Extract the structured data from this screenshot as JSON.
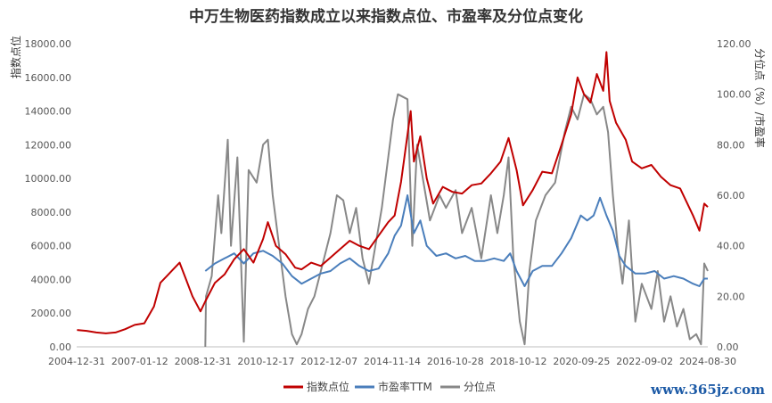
{
  "chart_data": {
    "type": "line",
    "title": "中万生物医药指数成立以来指数点位、市盈率及分位点变化",
    "ylabel_left": "指数点位",
    "ylabel_right": "分位点（%）/市盈率",
    "ylim_left": [
      0,
      18000
    ],
    "ylim_right": [
      0,
      120
    ],
    "yticks_left": [
      "0.00",
      "2000.00",
      "4000.00",
      "6000.00",
      "8000.00",
      "10000.00",
      "12000.00",
      "14000.00",
      "16000.00",
      "18000.00"
    ],
    "yticks_right": [
      "0.00",
      "20.00",
      "40.00",
      "60.00",
      "80.00",
      "100.00",
      "120.00"
    ],
    "x_range": [
      2004.99,
      2024.66
    ],
    "xticks": [
      "2004-12-31",
      "2007-01-12",
      "2008-12-31",
      "2010-12-17",
      "2012-12-07",
      "2014-11-14",
      "2016-10-28",
      "2018-10-12",
      "2020-09-25",
      "2022-09-02",
      "2024-08-30"
    ],
    "grid": false,
    "legend_position": "bottom",
    "series": [
      {
        "name": "指数点位",
        "axis": "left",
        "color": "#c00000",
        "points": [
          [
            2005.0,
            1000
          ],
          [
            2005.3,
            950
          ],
          [
            2005.6,
            850
          ],
          [
            2005.9,
            800
          ],
          [
            2006.2,
            850
          ],
          [
            2006.5,
            1050
          ],
          [
            2006.8,
            1300
          ],
          [
            2007.1,
            1400
          ],
          [
            2007.4,
            2400
          ],
          [
            2007.6,
            3800
          ],
          [
            2007.8,
            4200
          ],
          [
            2008.0,
            4600
          ],
          [
            2008.2,
            5000
          ],
          [
            2008.4,
            4000
          ],
          [
            2008.6,
            3000
          ],
          [
            2008.85,
            2100
          ],
          [
            2009.0,
            2700
          ],
          [
            2009.3,
            3800
          ],
          [
            2009.6,
            4300
          ],
          [
            2009.9,
            5200
          ],
          [
            2010.2,
            5800
          ],
          [
            2010.5,
            5000
          ],
          [
            2010.8,
            6400
          ],
          [
            2010.95,
            7400
          ],
          [
            2011.2,
            6000
          ],
          [
            2011.5,
            5500
          ],
          [
            2011.8,
            4700
          ],
          [
            2012.0,
            4600
          ],
          [
            2012.3,
            5000
          ],
          [
            2012.6,
            4800
          ],
          [
            2012.9,
            5300
          ],
          [
            2013.2,
            5800
          ],
          [
            2013.5,
            6300
          ],
          [
            2013.8,
            6000
          ],
          [
            2014.1,
            5800
          ],
          [
            2014.4,
            6600
          ],
          [
            2014.7,
            7400
          ],
          [
            2014.9,
            7800
          ],
          [
            2015.1,
            9800
          ],
          [
            2015.4,
            14000
          ],
          [
            2015.5,
            11000
          ],
          [
            2015.7,
            12500
          ],
          [
            2015.9,
            10000
          ],
          [
            2016.1,
            8500
          ],
          [
            2016.4,
            9500
          ],
          [
            2016.7,
            9200
          ],
          [
            2017.0,
            9100
          ],
          [
            2017.3,
            9600
          ],
          [
            2017.6,
            9700
          ],
          [
            2017.9,
            10300
          ],
          [
            2018.2,
            11000
          ],
          [
            2018.45,
            12400
          ],
          [
            2018.7,
            10500
          ],
          [
            2018.9,
            8400
          ],
          [
            2019.2,
            9300
          ],
          [
            2019.5,
            10400
          ],
          [
            2019.8,
            10300
          ],
          [
            2020.1,
            12000
          ],
          [
            2020.4,
            13800
          ],
          [
            2020.6,
            16000
          ],
          [
            2020.8,
            15000
          ],
          [
            2021.0,
            14500
          ],
          [
            2021.2,
            16200
          ],
          [
            2021.4,
            15200
          ],
          [
            2021.5,
            17500
          ],
          [
            2021.6,
            14600
          ],
          [
            2021.8,
            13300
          ],
          [
            2022.1,
            12300
          ],
          [
            2022.3,
            11000
          ],
          [
            2022.6,
            10600
          ],
          [
            2022.9,
            10800
          ],
          [
            2023.2,
            10100
          ],
          [
            2023.5,
            9600
          ],
          [
            2023.8,
            9400
          ],
          [
            2024.0,
            8600
          ],
          [
            2024.2,
            7800
          ],
          [
            2024.4,
            6900
          ],
          [
            2024.55,
            8500
          ],
          [
            2024.66,
            8300
          ]
        ]
      },
      {
        "name": "市盈率TTM",
        "axis": "right",
        "color": "#4a7ebb",
        "points": [
          [
            2009.0,
            30
          ],
          [
            2009.3,
            33
          ],
          [
            2009.6,
            35
          ],
          [
            2009.9,
            37
          ],
          [
            2010.2,
            33
          ],
          [
            2010.5,
            37
          ],
          [
            2010.8,
            38
          ],
          [
            2011.1,
            36
          ],
          [
            2011.4,
            33
          ],
          [
            2011.7,
            28
          ],
          [
            2012.0,
            25
          ],
          [
            2012.3,
            27
          ],
          [
            2012.6,
            29
          ],
          [
            2012.9,
            30
          ],
          [
            2013.2,
            33
          ],
          [
            2013.5,
            35
          ],
          [
            2013.8,
            32
          ],
          [
            2014.1,
            30
          ],
          [
            2014.4,
            31
          ],
          [
            2014.7,
            37
          ],
          [
            2014.9,
            44
          ],
          [
            2015.1,
            48
          ],
          [
            2015.3,
            60
          ],
          [
            2015.5,
            45
          ],
          [
            2015.7,
            50
          ],
          [
            2015.9,
            40
          ],
          [
            2016.2,
            36
          ],
          [
            2016.5,
            37
          ],
          [
            2016.8,
            35
          ],
          [
            2017.1,
            36
          ],
          [
            2017.4,
            34
          ],
          [
            2017.7,
            34
          ],
          [
            2018.0,
            35
          ],
          [
            2018.3,
            34
          ],
          [
            2018.5,
            37
          ],
          [
            2018.7,
            30
          ],
          [
            2018.95,
            24
          ],
          [
            2019.2,
            30
          ],
          [
            2019.5,
            32
          ],
          [
            2019.8,
            32
          ],
          [
            2020.1,
            37
          ],
          [
            2020.4,
            43
          ],
          [
            2020.7,
            52
          ],
          [
            2020.9,
            50
          ],
          [
            2021.1,
            52
          ],
          [
            2021.3,
            59
          ],
          [
            2021.5,
            52
          ],
          [
            2021.7,
            46
          ],
          [
            2021.9,
            36
          ],
          [
            2022.1,
            32
          ],
          [
            2022.4,
            29
          ],
          [
            2022.7,
            29
          ],
          [
            2023.0,
            30
          ],
          [
            2023.3,
            27
          ],
          [
            2023.6,
            28
          ],
          [
            2023.9,
            27
          ],
          [
            2024.2,
            25
          ],
          [
            2024.4,
            24
          ],
          [
            2024.55,
            27
          ],
          [
            2024.66,
            27
          ]
        ]
      },
      {
        "name": "分位点",
        "axis": "right",
        "color": "#888888",
        "points": [
          [
            2009.0,
            0
          ],
          [
            2009.02,
            20
          ],
          [
            2009.2,
            28
          ],
          [
            2009.4,
            60
          ],
          [
            2009.5,
            45
          ],
          [
            2009.7,
            82
          ],
          [
            2009.8,
            40
          ],
          [
            2010.0,
            75
          ],
          [
            2010.2,
            2
          ],
          [
            2010.35,
            70
          ],
          [
            2010.6,
            65
          ],
          [
            2010.8,
            80
          ],
          [
            2010.95,
            82
          ],
          [
            2011.1,
            60
          ],
          [
            2011.3,
            40
          ],
          [
            2011.5,
            20
          ],
          [
            2011.7,
            5
          ],
          [
            2011.85,
            1
          ],
          [
            2012.0,
            5
          ],
          [
            2012.2,
            15
          ],
          [
            2012.4,
            20
          ],
          [
            2012.6,
            30
          ],
          [
            2012.9,
            45
          ],
          [
            2013.1,
            60
          ],
          [
            2013.3,
            58
          ],
          [
            2013.5,
            45
          ],
          [
            2013.7,
            55
          ],
          [
            2013.9,
            35
          ],
          [
            2014.1,
            25
          ],
          [
            2014.3,
            40
          ],
          [
            2014.5,
            55
          ],
          [
            2014.7,
            75
          ],
          [
            2014.85,
            90
          ],
          [
            2015.0,
            100
          ],
          [
            2015.3,
            98
          ],
          [
            2015.45,
            40
          ],
          [
            2015.6,
            80
          ],
          [
            2015.8,
            65
          ],
          [
            2016.0,
            50
          ],
          [
            2016.3,
            60
          ],
          [
            2016.5,
            55
          ],
          [
            2016.8,
            62
          ],
          [
            2017.0,
            45
          ],
          [
            2017.3,
            55
          ],
          [
            2017.6,
            35
          ],
          [
            2017.9,
            60
          ],
          [
            2018.1,
            45
          ],
          [
            2018.3,
            60
          ],
          [
            2018.45,
            75
          ],
          [
            2018.6,
            35
          ],
          [
            2018.8,
            10
          ],
          [
            2018.95,
            1
          ],
          [
            2019.1,
            30
          ],
          [
            2019.3,
            50
          ],
          [
            2019.6,
            60
          ],
          [
            2019.9,
            65
          ],
          [
            2020.2,
            85
          ],
          [
            2020.4,
            95
          ],
          [
            2020.6,
            90
          ],
          [
            2020.8,
            100
          ],
          [
            2021.0,
            98
          ],
          [
            2021.2,
            92
          ],
          [
            2021.4,
            95
          ],
          [
            2021.55,
            85
          ],
          [
            2021.7,
            60
          ],
          [
            2021.85,
            40
          ],
          [
            2022.0,
            25
          ],
          [
            2022.2,
            50
          ],
          [
            2022.4,
            10
          ],
          [
            2022.6,
            25
          ],
          [
            2022.9,
            15
          ],
          [
            2023.1,
            30
          ],
          [
            2023.3,
            10
          ],
          [
            2023.5,
            20
          ],
          [
            2023.7,
            8
          ],
          [
            2023.9,
            15
          ],
          [
            2024.1,
            3
          ],
          [
            2024.3,
            5
          ],
          [
            2024.45,
            1
          ],
          [
            2024.55,
            33
          ],
          [
            2024.66,
            30
          ]
        ]
      }
    ]
  },
  "watermark": "www.365jz.com"
}
